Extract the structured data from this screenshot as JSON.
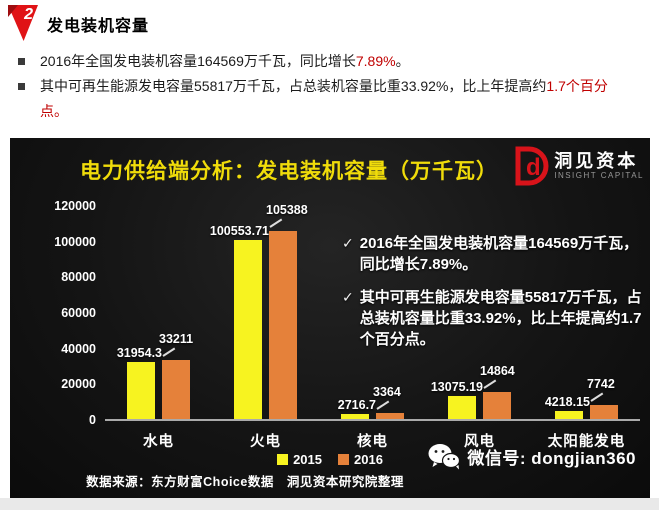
{
  "page": {
    "section_number": "2",
    "section_title": "发电装机容量",
    "bullets": [
      {
        "pre": "2016年全国发电装机容量164569万千瓦，同比增长",
        "highlight": "7.89%",
        "post": "。"
      },
      {
        "pre": "其中可再生能源发电容量55817万千瓦，占总装机容量比重33.92%，比上年提高约",
        "highlight": "1.7个百分点。",
        "post": ""
      }
    ]
  },
  "chart_panel": {
    "title": "电力供给端分析：发电装机容量（万千瓦）",
    "logo": {
      "name": "洞见资本",
      "subtitle": "INSIGHT CAPITAL",
      "color": "#d8131a"
    },
    "annotations": [
      "2016年全国发电装机容量164569万千瓦，同比增长7.89%。",
      "其中可再生能源发电容量55817万千瓦，占总装机容量比重33.92%，比上年提高约1.7个百分点。"
    ],
    "source": "数据来源：东方财富Choice数据　洞见资本研究院整理",
    "wechat": "微信号: dongjian360"
  },
  "icons": {
    "check": "✓",
    "section_marker": "red-ribbon-triangle",
    "wechat": "wechat-bubbles"
  },
  "colors": {
    "accent_red": "#c00000",
    "title_yellow": "#f0dc0a",
    "panel_black": "#141414"
  },
  "chart_data": {
    "type": "bar",
    "title": "电力供给端分析：发电装机容量（万千瓦）",
    "categories": [
      "水电",
      "火电",
      "核电",
      "风电",
      "太阳能发电"
    ],
    "series": [
      {
        "name": "2015",
        "color": "#f7f320",
        "values": [
          31954.3,
          100553.71,
          2716.7,
          13075.19,
          4218.15
        ]
      },
      {
        "name": "2016",
        "color": "#e5813a",
        "values": [
          33211,
          105388,
          3364,
          14864,
          7742
        ]
      }
    ],
    "value_labels": [
      [
        "31954.3",
        "33211"
      ],
      [
        "100553.71",
        "105388"
      ],
      [
        "2716.7",
        "3364"
      ],
      [
        "13075.19",
        "14864"
      ],
      [
        "4218.15",
        "7742"
      ]
    ],
    "xlabel": "",
    "ylabel": "",
    "ylim": [
      0,
      120000
    ],
    "yticks": [
      0,
      20000,
      40000,
      60000,
      80000,
      100000,
      120000
    ],
    "grid": false,
    "legend_position": "bottom"
  }
}
